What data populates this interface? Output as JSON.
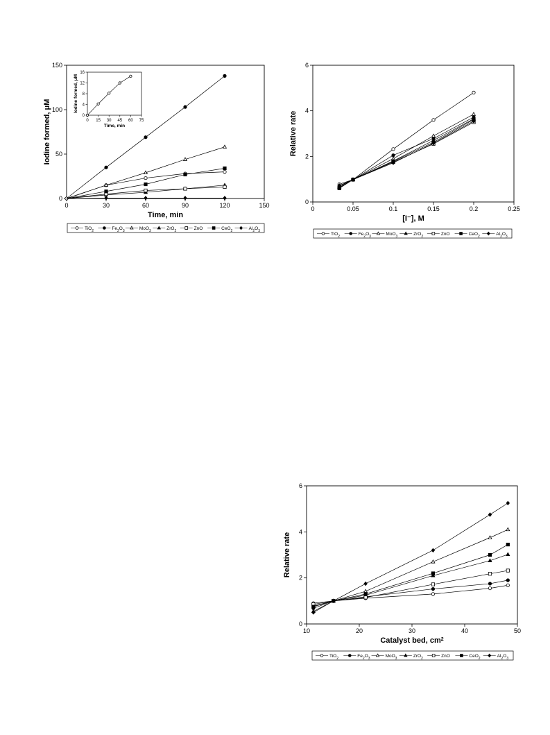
{
  "legend_labels": [
    {
      "label": "TiO",
      "sub": "2",
      "marker": "open-circle"
    },
    {
      "label": "Fe",
      "sub": "2",
      "label2": "O",
      "sub2": "3",
      "marker": "filled-circle"
    },
    {
      "label": "MoO",
      "sub": "3",
      "marker": "open-triangle"
    },
    {
      "label": "ZrO",
      "sub": "2",
      "marker": "filled-triangle"
    },
    {
      "label": "ZnO",
      "sub": "",
      "marker": "open-square"
    },
    {
      "label": "CeO",
      "sub": "2",
      "marker": "filled-square"
    },
    {
      "label": "Al",
      "sub": "2",
      "label2": "O",
      "sub2": "3",
      "marker": "filled-diamond"
    }
  ],
  "chart_data": [
    {
      "type": "line",
      "xlabel": "Time, min",
      "ylabel": "Iodine formed, μM",
      "xlim": [
        0,
        150
      ],
      "ylim": [
        0,
        150
      ],
      "xticks": [
        "0",
        "30",
        "60",
        "90",
        "120",
        "150"
      ],
      "yticks": [
        "0",
        "50",
        "100",
        "150"
      ],
      "x": [
        0,
        30,
        60,
        90,
        120
      ],
      "series": [
        {
          "name": "TiO2",
          "values": [
            0,
            15,
            23,
            28,
            30
          ]
        },
        {
          "name": "Fe2O3",
          "values": [
            0,
            35,
            69,
            103,
            138
          ]
        },
        {
          "name": "MoO3",
          "values": [
            0,
            15,
            29,
            44,
            58
          ]
        },
        {
          "name": "ZrO2",
          "values": [
            0,
            4,
            7,
            11,
            15
          ]
        },
        {
          "name": "ZnO",
          "values": [
            0,
            5,
            9,
            11,
            13
          ]
        },
        {
          "name": "CeO2",
          "values": [
            0,
            8,
            16,
            27,
            34
          ]
        },
        {
          "name": "Al2O3",
          "values": [
            0,
            0.5,
            0.5,
            0.5,
            0.5
          ]
        }
      ],
      "inset": {
        "xlabel": "Time, min",
        "ylabel": "Iodine formed, μM",
        "xlim": [
          0,
          75
        ],
        "ylim": [
          0,
          16
        ],
        "xticks": [
          "0",
          "15",
          "30",
          "45",
          "60",
          "75"
        ],
        "yticks": [
          "0",
          "4",
          "8",
          "12",
          "16"
        ],
        "x": [
          0,
          15,
          30,
          45,
          60
        ],
        "values": [
          0,
          4.2,
          8.2,
          12,
          14.5
        ]
      },
      "legend": "bottom"
    },
    {
      "type": "line",
      "xlabel": "[I⁻], M",
      "ylabel": "Relative rate",
      "xlim": [
        0,
        0.25
      ],
      "ylim": [
        0,
        6
      ],
      "xticks": [
        "0",
        "0.05",
        "0.1",
        "0.15",
        "0.2",
        "0.25"
      ],
      "yticks": [
        "0",
        "2",
        "4",
        "6"
      ],
      "x": [
        0.033,
        0.05,
        0.1,
        0.15,
        0.2
      ],
      "series": [
        {
          "name": "TiO2",
          "values": [
            0.78,
            0.98,
            2.32,
            3.6,
            4.8
          ]
        },
        {
          "name": "Fe2O3",
          "values": [
            0.7,
            0.98,
            2.05,
            2.78,
            3.72
          ]
        },
        {
          "name": "MoO3",
          "values": [
            0.7,
            0.98,
            1.9,
            2.9,
            3.85
          ]
        },
        {
          "name": "ZrO2",
          "values": [
            0.65,
            0.98,
            1.8,
            2.7,
            3.65
          ]
        },
        {
          "name": "ZnO",
          "values": [
            0.62,
            0.98,
            1.75,
            2.55,
            3.5
          ]
        },
        {
          "name": "CeO2",
          "values": [
            0.6,
            0.98,
            1.78,
            2.62,
            3.62
          ]
        },
        {
          "name": "Al2O3",
          "values": [
            0.72,
            0.98,
            1.72,
            2.58,
            3.55
          ]
        }
      ],
      "legend": "bottom"
    },
    {
      "type": "line",
      "xlabel": "Catalyst bed, cm",
      "xlabel_sup": "2",
      "ylabel": "Relative rate",
      "xlim": [
        10,
        50
      ],
      "ylim": [
        0,
        6
      ],
      "xticks": [
        "10",
        "20",
        "30",
        "40",
        "50"
      ],
      "yticks": [
        "0",
        "2",
        "4",
        "6"
      ],
      "x": [
        11.3,
        15.1,
        21.2,
        34.0,
        44.8,
        48.2
      ],
      "series": [
        {
          "name": "TiO2",
          "values": [
            0.9,
            1.0,
            1.12,
            1.3,
            1.55,
            1.68
          ]
        },
        {
          "name": "Fe2O3",
          "values": [
            0.68,
            1.0,
            1.18,
            1.52,
            1.75,
            1.9
          ]
        },
        {
          "name": "MoO3",
          "values": [
            0.55,
            1.0,
            1.42,
            2.7,
            3.75,
            4.1
          ]
        },
        {
          "name": "ZrO2",
          "values": [
            0.78,
            1.0,
            1.25,
            2.1,
            2.75,
            3.02
          ]
        },
        {
          "name": "ZnO",
          "values": [
            0.85,
            1.0,
            1.15,
            1.72,
            2.18,
            2.32
          ]
        },
        {
          "name": "CeO2",
          "values": [
            0.75,
            1.0,
            1.3,
            2.2,
            3.0,
            3.45
          ]
        },
        {
          "name": "Al2O3",
          "values": [
            0.5,
            1.0,
            1.75,
            3.2,
            4.75,
            5.25
          ]
        }
      ],
      "legend": "bottom"
    }
  ]
}
